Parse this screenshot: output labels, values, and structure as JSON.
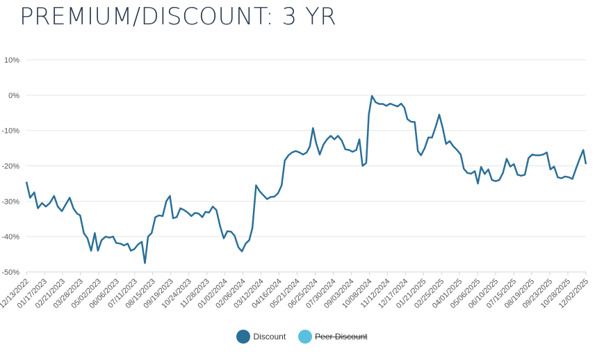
{
  "title": "PREMIUM/DISCOUNT: 3 YR",
  "chart_data": {
    "type": "line",
    "title": "PREMIUM/DISCOUNT: 3 YR",
    "xlabel": "",
    "ylabel": "",
    "ylim": [
      -50,
      10
    ],
    "yticks": [
      10,
      0,
      -10,
      -20,
      -30,
      -40,
      -50
    ],
    "ytick_labels": [
      "10%",
      "0%",
      "-10%",
      "-20%",
      "-30%",
      "-40%",
      "-50%"
    ],
    "x_tick_labels": [
      "12/13/2022",
      "01/17/2023",
      "02/21/2023",
      "03/28/2023",
      "05/02/2023",
      "06/06/2023",
      "07/11/2023",
      "08/15/2023",
      "09/19/2023",
      "10/24/2023",
      "11/28/2023",
      "01/02/2024",
      "02/06/2024",
      "03/12/2024",
      "04/16/2024",
      "05/21/2024",
      "06/25/2024",
      "07/30/2024",
      "09/03/2024",
      "10/08/2024",
      "11/12/2024",
      "12/17/2024",
      "01/21/2025",
      "02/25/2025",
      "04/01/2025",
      "05/06/2025",
      "06/10/2025",
      "07/15/2025",
      "08/19/2025",
      "09/23/2025",
      "10/28/2025",
      "12/02/2025"
    ],
    "grid": true,
    "series": [
      {
        "name": "Discount",
        "color": "#2a6f97",
        "points": [
          [
            0,
            -24.5
          ],
          [
            0.7,
            -29
          ],
          [
            1.5,
            -27.5
          ],
          [
            2.2,
            -32
          ],
          [
            3,
            -30.5
          ],
          [
            3.7,
            -31.5
          ],
          [
            4.5,
            -30.5
          ],
          [
            5.3,
            -28.5
          ],
          [
            6,
            -31.5
          ],
          [
            6.8,
            -32.8
          ],
          [
            7.5,
            -31
          ],
          [
            8.3,
            -29
          ],
          [
            9,
            -32
          ],
          [
            9.7,
            -33.5
          ],
          [
            10.3,
            -34
          ],
          [
            11,
            -39
          ],
          [
            11.7,
            -40.5
          ],
          [
            12.4,
            -44
          ],
          [
            13.1,
            -39
          ],
          [
            13.7,
            -44
          ],
          [
            14.4,
            -41
          ],
          [
            15.2,
            -40
          ],
          [
            15.9,
            -40.3
          ],
          [
            16.6,
            -40
          ],
          [
            17.2,
            -41.8
          ],
          [
            18,
            -42
          ],
          [
            18.7,
            -42.5
          ],
          [
            19.4,
            -42
          ],
          [
            20,
            -44
          ],
          [
            20.7,
            -43.5
          ],
          [
            21.4,
            -42.2
          ],
          [
            22.1,
            -41.5
          ],
          [
            22.7,
            -47.5
          ],
          [
            23.3,
            -40
          ],
          [
            24,
            -39
          ],
          [
            24.7,
            -34.5
          ],
          [
            25.4,
            -34
          ],
          [
            26.1,
            -34.2
          ],
          [
            26.8,
            -30
          ],
          [
            27.5,
            -28.5
          ],
          [
            28.1,
            -34.8
          ],
          [
            28.8,
            -34.5
          ],
          [
            29.5,
            -32
          ],
          [
            30.2,
            -32.5
          ],
          [
            30.9,
            -33.2
          ],
          [
            31.6,
            -34.2
          ],
          [
            32.3,
            -33.3
          ],
          [
            33,
            -33.5
          ],
          [
            33.7,
            -34.5
          ],
          [
            34.3,
            -33
          ],
          [
            35,
            -33.2
          ],
          [
            35.7,
            -31.5
          ],
          [
            36.4,
            -32.5
          ],
          [
            37.1,
            -37
          ],
          [
            37.8,
            -40.5
          ],
          [
            38.5,
            -38.5
          ],
          [
            39.2,
            -38.6
          ],
          [
            39.9,
            -39.8
          ],
          [
            40.6,
            -43
          ],
          [
            41.3,
            -44.2
          ],
          [
            42,
            -42
          ],
          [
            42.7,
            -41
          ],
          [
            43.3,
            -37.5
          ],
          [
            44,
            -25.5
          ],
          [
            44.7,
            -27.2
          ],
          [
            45.4,
            -28.3
          ],
          [
            46.1,
            -29.4
          ],
          [
            46.8,
            -28.8
          ],
          [
            47.5,
            -28.7
          ],
          [
            48.2,
            -27.8
          ],
          [
            48.9,
            -25.5
          ],
          [
            49.5,
            -18.5
          ],
          [
            50.2,
            -17
          ],
          [
            50.9,
            -16.2
          ],
          [
            51.6,
            -15.8
          ],
          [
            52.3,
            -16.2
          ],
          [
            53,
            -16.8
          ],
          [
            53.7,
            -16.2
          ],
          [
            54.3,
            -14.5
          ],
          [
            54.9,
            -9.3
          ],
          [
            55.5,
            -13.5
          ],
          [
            56.2,
            -16.8
          ],
          [
            56.9,
            -14
          ],
          [
            57.6,
            -12.5
          ],
          [
            58.3,
            -11.5
          ],
          [
            59,
            -12.5
          ],
          [
            59.7,
            -11.5
          ],
          [
            60.4,
            -12.8
          ],
          [
            61.1,
            -15.3
          ],
          [
            61.8,
            -15.5
          ],
          [
            62.5,
            -16
          ],
          [
            63.2,
            -15.5
          ],
          [
            63.8,
            -12.5
          ],
          [
            64.4,
            -20
          ],
          [
            65.1,
            -19.2
          ],
          [
            65.6,
            -5.5
          ],
          [
            66.2,
            -0.2
          ],
          [
            66.9,
            -2
          ],
          [
            67.6,
            -2.5
          ],
          [
            68.3,
            -2.5
          ],
          [
            69,
            -3
          ],
          [
            69.7,
            -2.4
          ],
          [
            70.4,
            -2.8
          ],
          [
            71.1,
            -3.2
          ],
          [
            71.8,
            -2.4
          ],
          [
            72.4,
            -3.5
          ],
          [
            73,
            -6.8
          ],
          [
            73.7,
            -7.5
          ],
          [
            74.4,
            -7.6
          ],
          [
            75,
            -15.8
          ],
          [
            75.6,
            -17
          ],
          [
            76.3,
            -15
          ],
          [
            77,
            -12
          ],
          [
            77.7,
            -12
          ],
          [
            78.4,
            -9
          ],
          [
            79.1,
            -5.5
          ],
          [
            79.8,
            -9.5
          ],
          [
            80.4,
            -13.8
          ],
          [
            81.1,
            -13
          ],
          [
            81.8,
            -14.5
          ],
          [
            82.5,
            -15.5
          ],
          [
            83.2,
            -16.8
          ],
          [
            83.8,
            -20.8
          ],
          [
            84.5,
            -22
          ],
          [
            85.2,
            -22.2
          ],
          [
            85.9,
            -21.5
          ],
          [
            86.5,
            -25
          ],
          [
            87.1,
            -20.3
          ],
          [
            87.8,
            -22.3
          ],
          [
            88.5,
            -21
          ],
          [
            89.2,
            -24
          ],
          [
            89.9,
            -24.3
          ],
          [
            90.6,
            -24
          ],
          [
            91.3,
            -22
          ],
          [
            92,
            -18
          ],
          [
            92.7,
            -20.2
          ],
          [
            93.4,
            -19.5
          ],
          [
            94.1,
            -22.5
          ],
          [
            94.8,
            -22.8
          ],
          [
            95.5,
            -22.5
          ],
          [
            96.2,
            -17.8
          ],
          [
            96.9,
            -16.8
          ],
          [
            97.6,
            -17
          ],
          [
            98.3,
            -17
          ],
          [
            99,
            -16.8
          ],
          [
            99.7,
            -16.2
          ],
          [
            100.4,
            -21
          ],
          [
            101.1,
            -20.2
          ],
          [
            101.8,
            -23.2
          ],
          [
            102.5,
            -23.5
          ],
          [
            103.2,
            -23
          ],
          [
            103.9,
            -23.2
          ],
          [
            104.6,
            -23.7
          ],
          [
            105.3,
            -20.8
          ],
          [
            106,
            -18
          ],
          [
            106.7,
            -15.5
          ],
          [
            107.2,
            -19.5
          ]
        ]
      },
      {
        "name": "Peer Discount",
        "color": "#5bc0de",
        "hidden": true,
        "points": []
      }
    ],
    "x_range": [
      0,
      107.2
    ]
  },
  "legend": {
    "items": [
      {
        "label": "Discount",
        "color": "#2a6f97",
        "disabled": false
      },
      {
        "label": "Peer Discount",
        "color": "#5bc0de",
        "disabled": true
      }
    ]
  }
}
